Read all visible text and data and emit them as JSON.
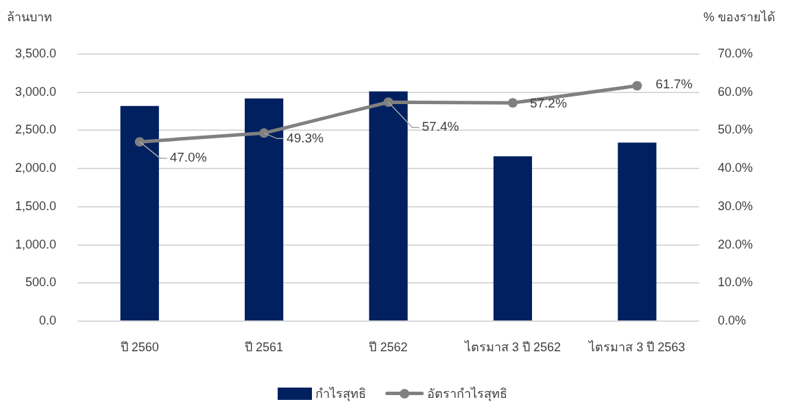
{
  "chart_data": {
    "type": "bar",
    "ylabel": "ล้านบาท",
    "y2label": "% ของรายได้",
    "categories": [
      "ปี 2560",
      "ปี 2561",
      "ปี 2562",
      "ไตรมาส 3 ปี 2562",
      "ไตรมาส 3 ปี 2563"
    ],
    "series": [
      {
        "name": "กำไรสุทธิ",
        "color": "#002060",
        "values": [
          2820,
          2920,
          3010,
          2160,
          2340
        ]
      },
      {
        "name": "อัตรากำไรสุทธิ",
        "type": "line",
        "axis": "y2",
        "color": "#808080",
        "marker": "circle",
        "values": [
          47.0,
          49.3,
          57.4,
          57.2,
          61.7
        ],
        "value_labels": [
          "47.0%",
          "49.3%",
          "57.4%",
          "57.2%",
          "61.7%"
        ]
      }
    ],
    "ylim": [
      0,
      3500
    ],
    "yticks": [
      {
        "value": 0,
        "label": "0.0"
      },
      {
        "value": 500,
        "label": "500.0"
      },
      {
        "value": 1000,
        "label": "1,000.0"
      },
      {
        "value": 1500,
        "label": "1,500.0"
      },
      {
        "value": 2000,
        "label": "2,000.0"
      },
      {
        "value": 2500,
        "label": "2,500.0"
      },
      {
        "value": 3000,
        "label": "3,000.0"
      },
      {
        "value": 3500,
        "label": "3,500.0"
      }
    ],
    "y2lim": [
      0,
      70
    ],
    "y2ticks": [
      {
        "value": 0,
        "label": "0.0%"
      },
      {
        "value": 10,
        "label": "10.0%"
      },
      {
        "value": 20,
        "label": "20.0%"
      },
      {
        "value": 30,
        "label": "30.0%"
      },
      {
        "value": 40,
        "label": "40.0%"
      },
      {
        "value": 50,
        "label": "50.0%"
      },
      {
        "value": 60,
        "label": "60.0%"
      },
      {
        "value": 70,
        "label": "70.0%"
      }
    ],
    "grid": "y",
    "legend": "bottom"
  }
}
